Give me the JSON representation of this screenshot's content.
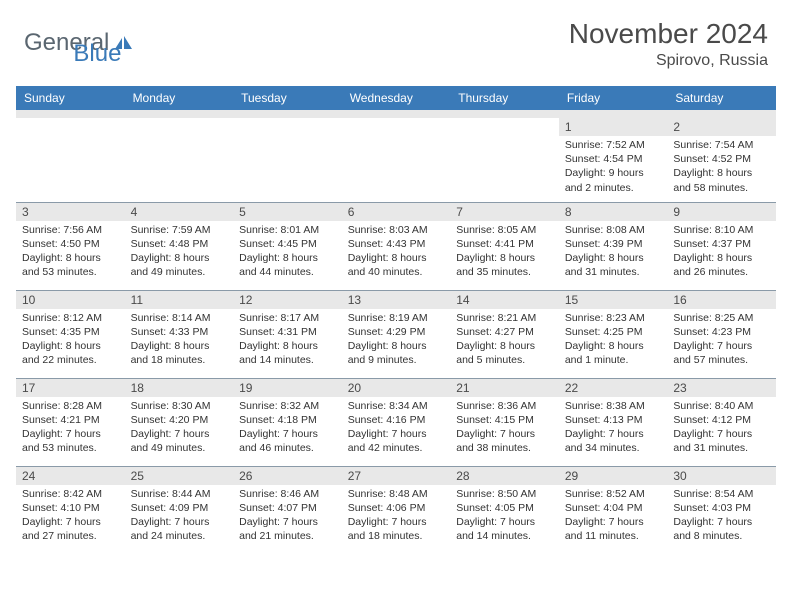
{
  "logo": {
    "text1": "General",
    "text2": "Blue",
    "text1_color": "#5a6670",
    "text2_color": "#3a7ab8",
    "icon_color": "#3a7ab8"
  },
  "title": "November 2024",
  "location": "Spirovo, Russia",
  "colors": {
    "header_bg": "#3a7ab8",
    "header_text": "#ffffff",
    "daynum_bg": "#e8e8e8",
    "border": "#8a9aa8",
    "body_text": "#333333"
  },
  "fonts": {
    "title_size": 28,
    "location_size": 16,
    "dayhead_size": 12,
    "daynum_size": 12,
    "info_size": 10.5
  },
  "day_headers": [
    "Sunday",
    "Monday",
    "Tuesday",
    "Wednesday",
    "Thursday",
    "Friday",
    "Saturday"
  ],
  "first_weekday": 5,
  "days": [
    {
      "n": 1,
      "sunrise": "7:52 AM",
      "sunset": "4:54 PM",
      "daylight": "9 hours and 2 minutes."
    },
    {
      "n": 2,
      "sunrise": "7:54 AM",
      "sunset": "4:52 PM",
      "daylight": "8 hours and 58 minutes."
    },
    {
      "n": 3,
      "sunrise": "7:56 AM",
      "sunset": "4:50 PM",
      "daylight": "8 hours and 53 minutes."
    },
    {
      "n": 4,
      "sunrise": "7:59 AM",
      "sunset": "4:48 PM",
      "daylight": "8 hours and 49 minutes."
    },
    {
      "n": 5,
      "sunrise": "8:01 AM",
      "sunset": "4:45 PM",
      "daylight": "8 hours and 44 minutes."
    },
    {
      "n": 6,
      "sunrise": "8:03 AM",
      "sunset": "4:43 PM",
      "daylight": "8 hours and 40 minutes."
    },
    {
      "n": 7,
      "sunrise": "8:05 AM",
      "sunset": "4:41 PM",
      "daylight": "8 hours and 35 minutes."
    },
    {
      "n": 8,
      "sunrise": "8:08 AM",
      "sunset": "4:39 PM",
      "daylight": "8 hours and 31 minutes."
    },
    {
      "n": 9,
      "sunrise": "8:10 AM",
      "sunset": "4:37 PM",
      "daylight": "8 hours and 26 minutes."
    },
    {
      "n": 10,
      "sunrise": "8:12 AM",
      "sunset": "4:35 PM",
      "daylight": "8 hours and 22 minutes."
    },
    {
      "n": 11,
      "sunrise": "8:14 AM",
      "sunset": "4:33 PM",
      "daylight": "8 hours and 18 minutes."
    },
    {
      "n": 12,
      "sunrise": "8:17 AM",
      "sunset": "4:31 PM",
      "daylight": "8 hours and 14 minutes."
    },
    {
      "n": 13,
      "sunrise": "8:19 AM",
      "sunset": "4:29 PM",
      "daylight": "8 hours and 9 minutes."
    },
    {
      "n": 14,
      "sunrise": "8:21 AM",
      "sunset": "4:27 PM",
      "daylight": "8 hours and 5 minutes."
    },
    {
      "n": 15,
      "sunrise": "8:23 AM",
      "sunset": "4:25 PM",
      "daylight": "8 hours and 1 minute."
    },
    {
      "n": 16,
      "sunrise": "8:25 AM",
      "sunset": "4:23 PM",
      "daylight": "7 hours and 57 minutes."
    },
    {
      "n": 17,
      "sunrise": "8:28 AM",
      "sunset": "4:21 PM",
      "daylight": "7 hours and 53 minutes."
    },
    {
      "n": 18,
      "sunrise": "8:30 AM",
      "sunset": "4:20 PM",
      "daylight": "7 hours and 49 minutes."
    },
    {
      "n": 19,
      "sunrise": "8:32 AM",
      "sunset": "4:18 PM",
      "daylight": "7 hours and 46 minutes."
    },
    {
      "n": 20,
      "sunrise": "8:34 AM",
      "sunset": "4:16 PM",
      "daylight": "7 hours and 42 minutes."
    },
    {
      "n": 21,
      "sunrise": "8:36 AM",
      "sunset": "4:15 PM",
      "daylight": "7 hours and 38 minutes."
    },
    {
      "n": 22,
      "sunrise": "8:38 AM",
      "sunset": "4:13 PM",
      "daylight": "7 hours and 34 minutes."
    },
    {
      "n": 23,
      "sunrise": "8:40 AM",
      "sunset": "4:12 PM",
      "daylight": "7 hours and 31 minutes."
    },
    {
      "n": 24,
      "sunrise": "8:42 AM",
      "sunset": "4:10 PM",
      "daylight": "7 hours and 27 minutes."
    },
    {
      "n": 25,
      "sunrise": "8:44 AM",
      "sunset": "4:09 PM",
      "daylight": "7 hours and 24 minutes."
    },
    {
      "n": 26,
      "sunrise": "8:46 AM",
      "sunset": "4:07 PM",
      "daylight": "7 hours and 21 minutes."
    },
    {
      "n": 27,
      "sunrise": "8:48 AM",
      "sunset": "4:06 PM",
      "daylight": "7 hours and 18 minutes."
    },
    {
      "n": 28,
      "sunrise": "8:50 AM",
      "sunset": "4:05 PM",
      "daylight": "7 hours and 14 minutes."
    },
    {
      "n": 29,
      "sunrise": "8:52 AM",
      "sunset": "4:04 PM",
      "daylight": "7 hours and 11 minutes."
    },
    {
      "n": 30,
      "sunrise": "8:54 AM",
      "sunset": "4:03 PM",
      "daylight": "7 hours and 8 minutes."
    }
  ],
  "labels": {
    "sunrise": "Sunrise:",
    "sunset": "Sunset:",
    "daylight": "Daylight:"
  }
}
